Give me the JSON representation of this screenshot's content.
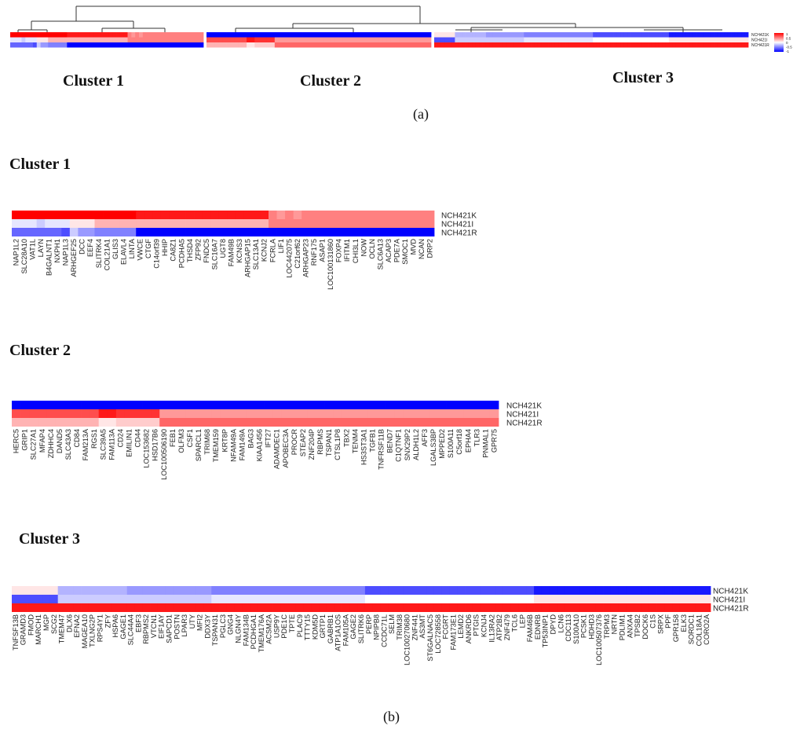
{
  "panel_labels": {
    "a": "(a)",
    "b": "(b)"
  },
  "top_heatmap": {
    "cluster_titles": [
      "Cluster 1",
      "Cluster 2",
      "Cluster 3"
    ],
    "row_labels": [
      "NCH421K",
      "NCH421I",
      "NCH421R"
    ],
    "legend": {
      "ticks": [
        "1",
        "0.5",
        "0",
        "-0.5",
        "-1"
      ],
      "high_color": "#ff0000",
      "mid_color": "#ffffff",
      "low_color": "#0000ff"
    }
  },
  "chart_data": [
    {
      "type": "heatmap",
      "title": "Cluster 1",
      "rows": [
        "NCH421K",
        "NCH421I",
        "NCH421R"
      ],
      "columns": [
        "NAP1L2",
        "SLC28A10",
        "VAT1L",
        "LAYN",
        "B4GALNT1",
        "NXPH1",
        "NAP1L3",
        "ARHGEF25",
        "DCC",
        "EEF4",
        "SLITRK4",
        "COL21A1",
        "GLIS3",
        "ELAVL4",
        "LINTA",
        "VWCE",
        "CTGF",
        "C14orf39",
        "HHIP",
        "CA8Z1",
        "PCDHA5",
        "THSD4",
        "ZFP92",
        "FNDC5",
        "SLC16A7",
        "UGT8",
        "FAM49B",
        "KCNS3",
        "ARHGAP15",
        "SLC13A1",
        "KCNJ2",
        "FCRLA",
        "LIF1",
        "LOC442075",
        "C21orf62",
        "ARHGAP23",
        "RNF175",
        "ASAP1",
        "LOC100131860",
        "FOXP4",
        "IFITM1",
        "CHI3L1",
        "NOW",
        "OCLN",
        "SLC6A13",
        "ACAP3",
        "PDE7A",
        "SMOC1",
        "MVD",
        "NCAN",
        "DRP2"
      ],
      "values": {
        "NCH421K": [
          1,
          1,
          1,
          1,
          1,
          1,
          1,
          1,
          1,
          1,
          1,
          1,
          1,
          1,
          1,
          0.9,
          0.9,
          0.9,
          0.9,
          0.9,
          0.9,
          0.9,
          0.9,
          0.9,
          0.9,
          0.9,
          0.9,
          0.9,
          0.9,
          0.9,
          0.9,
          0.5,
          0.4,
          0.5,
          0.4,
          0.5,
          0.5,
          0.5,
          0.5,
          0.5,
          0.5,
          0.5,
          0.5,
          0.5,
          0.5,
          0.5,
          0.5,
          0.5,
          0.5,
          0.5,
          0.5
        ],
        "NCH421I": [
          -0.1,
          -0.1,
          -0.1,
          -0.2,
          -0.1,
          -0.1,
          -0.1,
          0.1,
          0.1,
          0.1,
          0.3,
          0.3,
          0.3,
          0.3,
          0.3,
          0.3,
          0.3,
          0.3,
          0.3,
          0.3,
          0.3,
          0.3,
          0.3,
          0.3,
          0.3,
          0.3,
          0.3,
          0.3,
          0.3,
          0.3,
          0.3,
          0.5,
          0.5,
          0.5,
          0.5,
          0.5,
          0.5,
          0.5,
          0.5,
          0.5,
          0.5,
          0.5,
          0.5,
          0.5,
          0.5,
          0.5,
          0.5,
          0.5,
          0.5,
          0.5,
          0.5
        ],
        "NCH421R": [
          -0.6,
          -0.6,
          -0.6,
          -0.6,
          -0.6,
          -0.6,
          -0.7,
          -0.2,
          -0.4,
          -0.4,
          -0.5,
          -0.5,
          -0.5,
          -0.5,
          -0.5,
          -1,
          -1,
          -1,
          -1,
          -1,
          -1,
          -1,
          -1,
          -1,
          -1,
          -1,
          -1,
          -1,
          -1,
          -1,
          -1,
          -1,
          -1,
          -1,
          -1,
          -1,
          -1,
          -1,
          -1,
          -1,
          -1,
          -1,
          -1,
          -1,
          -1,
          -1,
          -1,
          -1,
          -1,
          -1,
          -1
        ]
      },
      "color_range": [
        -1,
        1
      ]
    },
    {
      "type": "heatmap",
      "title": "Cluster 2",
      "rows": [
        "NCH421K",
        "NCH421I",
        "NCH421R"
      ],
      "columns": [
        "HERC5",
        "GRIP1",
        "SLC27A1",
        "MFAP4",
        "ZDHHC4",
        "DAND5",
        "SLC43A3",
        "CD84",
        "FAM213A",
        "RGS1",
        "SLC39A5",
        "FAM113A",
        "CD24",
        "EMILIN1",
        "CD44",
        "LOC153682",
        "HSD17B6",
        "LOC100506190",
        "FEB1",
        "OLFM3",
        "CSF1",
        "SPARCL1",
        "TRIM68",
        "TMEM159",
        "KRT8P",
        "NFAM49A",
        "FAM149A",
        "BAG3",
        "KIAA1456",
        "IFT27",
        "ADAMDEC1",
        "APOBEC3A",
        "PROCR",
        "STEAP2",
        "ZNF204P",
        "RBPMS",
        "TSPAN1",
        "CTSL1P8",
        "TBX2",
        "TENM4",
        "HS3ST3A1",
        "TGFB1",
        "TNFRSF11B",
        "BEND7",
        "C1QTNF1",
        "SNX29P2",
        "ALDH1L2",
        "AFF3",
        "LGALS3BP",
        "MPPED2",
        "S100A11",
        "C5orf18",
        "EPHA4",
        "TLR3",
        "PNMAL1",
        "GPR75"
      ],
      "values": {
        "NCH421K": [
          -1,
          -1,
          -1,
          -1,
          -1,
          -1,
          -1,
          -1,
          -1,
          -1,
          -1,
          -1,
          -1,
          -1,
          -1,
          -1,
          -1,
          -1,
          -1,
          -1,
          -1,
          -1,
          -1,
          -1,
          -1,
          -1,
          -1,
          -1,
          -1,
          -1,
          -1,
          -1,
          -1,
          -1,
          -1,
          -1,
          -1,
          -1,
          -1,
          -1,
          -1,
          -1,
          -1,
          -1,
          -1,
          -1,
          -1,
          -1,
          -1,
          -1,
          -1,
          -1,
          -1,
          -1,
          -1,
          -1
        ],
        "NCH421I": [
          0.7,
          0.7,
          0.7,
          0.7,
          0.7,
          0.7,
          0.7,
          0.7,
          0.7,
          0.7,
          0.9,
          0.9,
          0.8,
          0.8,
          0.8,
          0.8,
          0.8,
          0.4,
          0.4,
          0.4,
          0.4,
          0.4,
          0.4,
          0.4,
          0.4,
          0.4,
          0.4,
          0.4,
          0.4,
          0.4,
          0.4,
          0.4,
          0.4,
          0.4,
          0.4,
          0.4,
          0.4,
          0.4,
          0.4,
          0.4,
          0.4,
          0.4,
          0.4,
          0.4,
          0.4,
          0.4,
          0.4,
          0.4,
          0.4,
          0.4,
          0.4,
          0.4,
          0.4,
          0.4,
          0.4,
          0.4
        ],
        "NCH421R": [
          0.3,
          0.3,
          0.3,
          0.3,
          0.3,
          0.3,
          0.3,
          0.3,
          0.3,
          0.3,
          0.1,
          0.1,
          0.2,
          0.2,
          0.2,
          0.2,
          0.2,
          0.6,
          0.6,
          0.6,
          0.6,
          0.6,
          0.6,
          0.6,
          0.6,
          0.6,
          0.6,
          0.6,
          0.6,
          0.6,
          0.6,
          0.6,
          0.6,
          0.6,
          0.6,
          0.6,
          0.6,
          0.6,
          0.6,
          0.6,
          0.6,
          0.6,
          0.6,
          0.6,
          0.6,
          0.6,
          0.6,
          0.6,
          0.6,
          0.6,
          0.6,
          0.6,
          0.6,
          0.6,
          0.6,
          0.6
        ]
      },
      "color_range": [
        -1,
        1
      ]
    },
    {
      "type": "heatmap",
      "title": "Cluster 3",
      "rows": [
        "NCH421K",
        "NCH421I",
        "NCH421R"
      ],
      "columns": [
        "TNFSF13B",
        "GRAMD3",
        "FMOD",
        "MARCH1",
        "MGP",
        "SCG2",
        "TMEM47",
        "DLX6",
        "EFNA2",
        "MAGEA10",
        "TXLNG2P",
        "RPS4Y1",
        "ZFY",
        "HSPA6",
        "GAGE1",
        "SLC44A4",
        "EBF3",
        "RBPMS2",
        "VTCN1",
        "EIF1AY",
        "SAPCD1",
        "POSTN",
        "LPAR3",
        "UTY",
        "MFI2",
        "DDX3Y",
        "TSPAN31",
        "PGLC3",
        "GNG4",
        "NLGN4Y",
        "FAM134B",
        "PCDHGA1",
        "TMEM176A",
        "ACSM2A",
        "USP9Y",
        "PDE1C",
        "TPTE",
        "PLAC9",
        "TTTY15",
        "KDM5D",
        "GRTP1",
        "GABRB1",
        "ATP1A1OS",
        "FAM105A",
        "GAGE2",
        "SLITRK6",
        "PERP",
        "NPIPB8",
        "CCDC71L",
        "SELM",
        "TRIM38",
        "LOC100270680",
        "ZNF441",
        "AS3MT",
        "ST6GALNAC5",
        "LOC728558",
        "FCGRT",
        "FAM173E1",
        "LEMD2",
        "ANKRD6",
        "PTGIS",
        "KCNJ4",
        "IL13RA2",
        "ATP2B2",
        "ZNF479",
        "TCL6",
        "LEP",
        "FAM46B",
        "EDNRB",
        "TP53INP1",
        "DPYD",
        "LCN6",
        "CDC113",
        "S100A10",
        "PCSK1",
        "HDHD3",
        "LOC100507376",
        "TRPM3",
        "NRTN",
        "PDLIM1",
        "ANXA4",
        "TPSB2",
        "DOCK6",
        "C1S",
        "SRPX",
        "PPF",
        "GPR158",
        "ELK3",
        "SORDC1",
        "COL18A1",
        "CORO2A"
      ],
      "values": {
        "NCH421K": [
          0.1,
          0.1,
          0.1,
          0.1,
          0.1,
          0.1,
          -0.3,
          -0.3,
          -0.3,
          -0.3,
          -0.3,
          -0.3,
          -0.3,
          -0.3,
          -0.3,
          -0.4,
          -0.4,
          -0.4,
          -0.4,
          -0.4,
          -0.4,
          -0.4,
          -0.4,
          -0.4,
          -0.4,
          -0.4,
          -0.5,
          -0.5,
          -0.5,
          -0.5,
          -0.5,
          -0.5,
          -0.5,
          -0.5,
          -0.5,
          -0.5,
          -0.5,
          -0.5,
          -0.5,
          -0.5,
          -0.5,
          -0.5,
          -0.5,
          -0.5,
          -0.5,
          -0.5,
          -0.7,
          -0.7,
          -0.7,
          -0.7,
          -0.7,
          -0.7,
          -0.7,
          -0.7,
          -0.7,
          -0.7,
          -0.7,
          -0.7,
          -0.7,
          -0.7,
          -0.7,
          -0.7,
          -0.7,
          -0.7,
          -0.7,
          -0.7,
          -0.7,
          -0.7,
          -0.9,
          -0.9,
          -0.9,
          -0.9,
          -0.9,
          -0.9,
          -0.9,
          -0.9,
          -0.9,
          -0.9,
          -0.9,
          -0.9,
          -0.9,
          -0.9,
          -0.9,
          -0.9,
          -0.9,
          -0.9,
          -0.9,
          -0.9,
          -0.9,
          -0.9,
          -0.9
        ],
        "NCH421I": [
          -0.7,
          -0.7,
          -0.7,
          -0.7,
          -0.7,
          -0.7,
          -0.2,
          -0.2,
          -0.2,
          -0.2,
          -0.2,
          -0.2,
          -0.2,
          -0.2,
          -0.2,
          -0.2,
          -0.2,
          -0.2,
          -0.2,
          -0.2,
          -0.2,
          -0.2,
          -0.2,
          -0.2,
          -0.2,
          -0.2,
          -0.1,
          -0.1,
          -0.1,
          -0.1,
          -0.1,
          -0.1,
          -0.1,
          -0.1,
          -0.1,
          -0.1,
          -0.1,
          -0.1,
          -0.1,
          -0.1,
          -0.1,
          -0.1,
          -0.1,
          -0.1,
          -0.1,
          -0.1,
          0.0,
          0.0,
          0.0,
          0.0,
          0.0,
          0.0,
          0.0,
          0.0,
          0.0,
          0.0,
          0.0,
          0.0,
          0.0,
          0.0,
          0.0,
          0.0,
          0.0,
          0.0,
          0.0,
          0.0,
          0.0,
          0.0,
          0.1,
          0.1,
          0.1,
          0.1,
          0.1,
          0.1,
          0.1,
          0.1,
          0.1,
          0.1,
          0.1,
          0.1,
          0.1,
          0.1,
          0.1,
          0.1,
          0.1,
          0.1,
          0.1,
          0.1,
          0.1,
          0.1,
          0.1
        ],
        "NCH421R": [
          0.9,
          0.9,
          0.9,
          0.9,
          0.9,
          0.9,
          0.9,
          0.9,
          0.9,
          0.9,
          0.9,
          0.9,
          0.9,
          0.9,
          0.9,
          0.9,
          0.9,
          0.9,
          0.9,
          0.9,
          0.9,
          0.9,
          0.9,
          0.9,
          0.9,
          0.9,
          0.9,
          0.9,
          0.9,
          0.9,
          0.9,
          0.9,
          0.9,
          0.9,
          0.9,
          0.9,
          0.9,
          0.9,
          0.9,
          0.9,
          0.9,
          0.9,
          0.9,
          0.9,
          0.9,
          0.9,
          0.9,
          0.9,
          0.9,
          0.9,
          0.9,
          0.9,
          0.9,
          0.9,
          0.9,
          0.9,
          0.9,
          0.9,
          0.9,
          0.9,
          0.9,
          0.9,
          0.9,
          0.9,
          0.9,
          0.9,
          0.9,
          0.9,
          0.9,
          0.9,
          0.9,
          0.9,
          0.9,
          0.9,
          0.9,
          0.9,
          0.9,
          0.9,
          0.9,
          0.9,
          0.9,
          0.9,
          0.9,
          0.9,
          0.9,
          0.9,
          0.9,
          0.9,
          0.9,
          0.9,
          0.9
        ]
      },
      "color_range": [
        -1,
        1
      ]
    }
  ]
}
